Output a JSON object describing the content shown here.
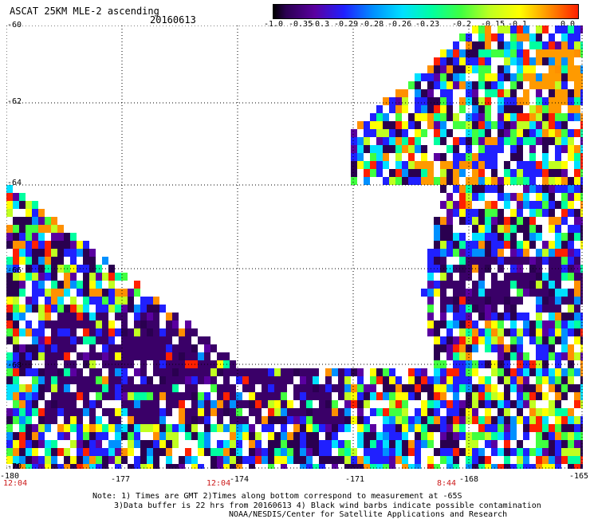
{
  "header": {
    "title": "ASCAT 25KM MLE-2 ascending",
    "date": "20160613"
  },
  "colorbar": {
    "labels": [
      "-1.0",
      "-0.35",
      "-0.3",
      "-0.29",
      "-0.28",
      "-0.26",
      "-0.23",
      "-0.2",
      "-0.15",
      "-0.1",
      "0.0"
    ],
    "colors": [
      "#2a0050",
      "#5a00a0",
      "#2020ff",
      "#0090ff",
      "#00e0ff",
      "#00ffa0",
      "#40ff40",
      "#c0ff20",
      "#ffff00",
      "#ff9000",
      "#ff2000"
    ]
  },
  "map": {
    "lat_labels": [
      "-60",
      "-62",
      "-64",
      "-66",
      "-68",
      "-70"
    ],
    "lon_labels": [
      "-180",
      "-177",
      "-174",
      "-171",
      "-168",
      "-165"
    ],
    "time_labels": [
      "12:04",
      "12:04",
      "8:44"
    ]
  },
  "notes": {
    "line1": "Note: 1) Times are GMT 2)Times along bottom correspond to measurement at -65S",
    "line2": "3)Data buffer is 22 hrs from 20160613 4) Black wind barbs indicate possible contamination",
    "line3": "NOAA/NESDIS/Center for Satellite Applications and Research"
  }
}
